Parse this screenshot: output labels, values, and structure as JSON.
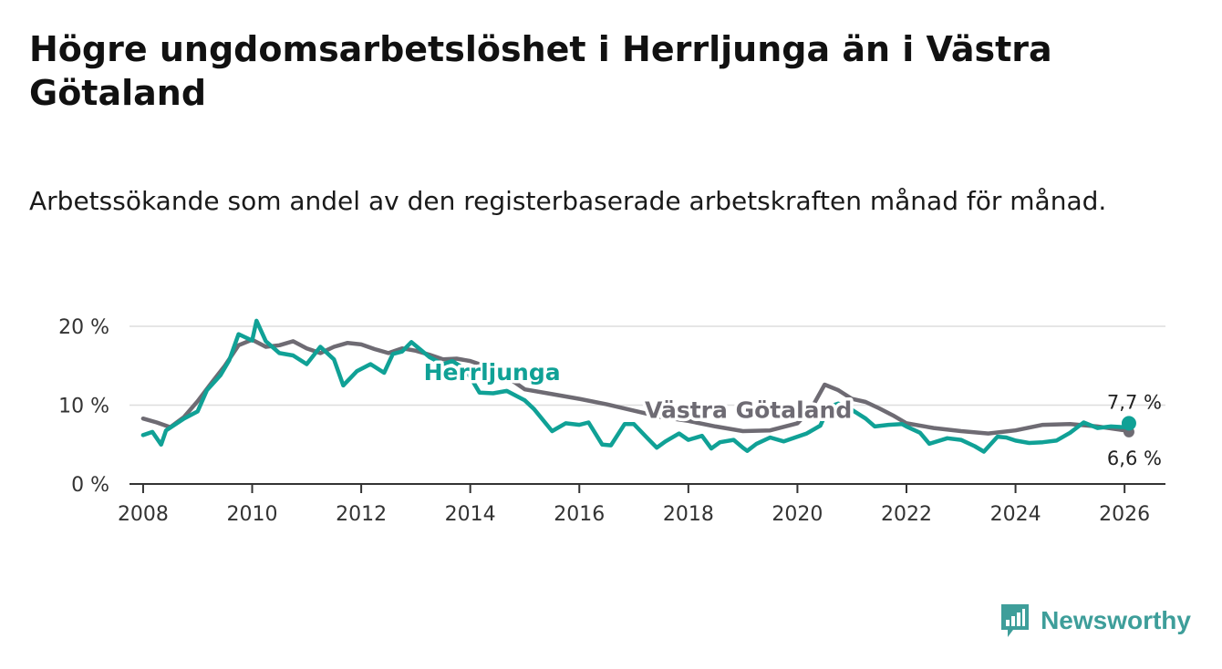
{
  "title": "Högre ungdomsarbetslöshet i Herrljunga än i Västra Götaland",
  "subtitle": "Arbetssökande som andel av den registerbaserade arbetskraften månad för månad.",
  "brand": "Newsworthy",
  "colors": {
    "herrljunga": "#10a196",
    "vastra": "#6e6b73",
    "grid": "#dddddd",
    "axis": "#333333"
  },
  "chart_data": {
    "type": "line",
    "title": "Högre ungdomsarbetslöshet i Herrljunga än i Västra Götaland",
    "xlabel": "",
    "ylabel": "",
    "xlim": [
      2007.75,
      2026.75
    ],
    "ylim": [
      0,
      20
    ],
    "y_ticks": [
      {
        "value": 0,
        "label": "0 %"
      },
      {
        "value": 10,
        "label": "10 %"
      },
      {
        "value": 20,
        "label": "20 %"
      }
    ],
    "x_ticks": [
      {
        "value": 2008,
        "label": "2008"
      },
      {
        "value": 2010,
        "label": "2010"
      },
      {
        "value": 2012,
        "label": "2012"
      },
      {
        "value": 2014,
        "label": "2014"
      },
      {
        "value": 2016,
        "label": "2016"
      },
      {
        "value": 2018,
        "label": "2018"
      },
      {
        "value": 2020,
        "label": "2020"
      },
      {
        "value": 2022,
        "label": "2022"
      },
      {
        "value": 2024,
        "label": "2024"
      },
      {
        "value": 2026,
        "label": "2026"
      }
    ],
    "series": [
      {
        "name": "Västra Götaland",
        "label": "Västra Götaland",
        "end_label": "6,6 %",
        "points": [
          [
            2008,
            8.3
          ],
          [
            2008.25,
            7.8
          ],
          [
            2008.5,
            7.2
          ],
          [
            2008.75,
            8.5
          ],
          [
            2009,
            10.5
          ],
          [
            2009.25,
            12.8
          ],
          [
            2009.5,
            15
          ],
          [
            2009.75,
            17.6
          ],
          [
            2010,
            18.3
          ],
          [
            2010.25,
            17.4
          ],
          [
            2010.5,
            17.6
          ],
          [
            2010.75,
            18.1
          ],
          [
            2011,
            17.2
          ],
          [
            2011.25,
            16.6
          ],
          [
            2011.5,
            17.4
          ],
          [
            2011.75,
            17.9
          ],
          [
            2012,
            17.7
          ],
          [
            2012.25,
            17.1
          ],
          [
            2012.5,
            16.6
          ],
          [
            2012.75,
            17.2
          ],
          [
            2013,
            16.9
          ],
          [
            2013.25,
            16.4
          ],
          [
            2013.5,
            15.8
          ],
          [
            2013.75,
            15.9
          ],
          [
            2014,
            15.6
          ],
          [
            2014.5,
            14.4
          ],
          [
            2015,
            12
          ],
          [
            2015.5,
            11.4
          ],
          [
            2016,
            10.8
          ],
          [
            2016.5,
            10.1
          ],
          [
            2017,
            9.3
          ],
          [
            2017.5,
            8.5
          ],
          [
            2018,
            8
          ],
          [
            2018.5,
            7.3
          ],
          [
            2019,
            6.7
          ],
          [
            2019.5,
            6.8
          ],
          [
            2020,
            7.7
          ],
          [
            2020.25,
            9.5
          ],
          [
            2020.5,
            12.6
          ],
          [
            2020.75,
            11.9
          ],
          [
            2021,
            10.8
          ],
          [
            2021.25,
            10.4
          ],
          [
            2021.5,
            9.6
          ],
          [
            2021.75,
            8.7
          ],
          [
            2022,
            7.7
          ],
          [
            2022.5,
            7.1
          ],
          [
            2023,
            6.7
          ],
          [
            2023.5,
            6.4
          ],
          [
            2024,
            6.8
          ],
          [
            2024.5,
            7.5
          ],
          [
            2025,
            7.6
          ],
          [
            2025.5,
            7.3
          ],
          [
            2026,
            6.8
          ],
          [
            2026.08,
            6.6
          ]
        ]
      },
      {
        "name": "Herrljunga",
        "label": "Herrljunga",
        "end_label": "7,7 %",
        "points": [
          [
            2008,
            6.2
          ],
          [
            2008.17,
            6.6
          ],
          [
            2008.33,
            5
          ],
          [
            2008.42,
            6.8
          ],
          [
            2008.75,
            8.3
          ],
          [
            2009,
            9.2
          ],
          [
            2009.17,
            11.9
          ],
          [
            2009.42,
            13.8
          ],
          [
            2009.58,
            15.7
          ],
          [
            2009.75,
            19
          ],
          [
            2010,
            18.2
          ],
          [
            2010.08,
            20.7
          ],
          [
            2010.25,
            18.1
          ],
          [
            2010.5,
            16.6
          ],
          [
            2010.75,
            16.3
          ],
          [
            2011,
            15.2
          ],
          [
            2011.25,
            17.4
          ],
          [
            2011.5,
            15.8
          ],
          [
            2011.67,
            12.5
          ],
          [
            2011.92,
            14.3
          ],
          [
            2012.17,
            15.2
          ],
          [
            2012.42,
            14.1
          ],
          [
            2012.58,
            16.5
          ],
          [
            2012.75,
            16.8
          ],
          [
            2012.92,
            18
          ],
          [
            2013.25,
            16.1
          ],
          [
            2013.5,
            15.2
          ],
          [
            2013.67,
            15.6
          ],
          [
            2013.92,
            14.5
          ],
          [
            2014.17,
            11.6
          ],
          [
            2014.42,
            11.5
          ],
          [
            2014.67,
            11.8
          ],
          [
            2015,
            10.6
          ],
          [
            2015.17,
            9.5
          ],
          [
            2015.5,
            6.7
          ],
          [
            2015.75,
            7.7
          ],
          [
            2016,
            7.5
          ],
          [
            2016.17,
            7.8
          ],
          [
            2016.42,
            5
          ],
          [
            2016.58,
            4.9
          ],
          [
            2016.83,
            7.6
          ],
          [
            2017,
            7.6
          ],
          [
            2017.25,
            5.8
          ],
          [
            2017.42,
            4.6
          ],
          [
            2017.58,
            5.4
          ],
          [
            2017.83,
            6.4
          ],
          [
            2018,
            5.6
          ],
          [
            2018.25,
            6.1
          ],
          [
            2018.42,
            4.5
          ],
          [
            2018.58,
            5.3
          ],
          [
            2018.83,
            5.6
          ],
          [
            2019,
            4.6
          ],
          [
            2019.08,
            4.2
          ],
          [
            2019.25,
            5.1
          ],
          [
            2019.5,
            5.9
          ],
          [
            2019.75,
            5.4
          ],
          [
            2020,
            6
          ],
          [
            2020.17,
            6.4
          ],
          [
            2020.42,
            7.4
          ],
          [
            2020.58,
            9.8
          ],
          [
            2020.75,
            10.2
          ],
          [
            2021,
            9.4
          ],
          [
            2021.25,
            8.3
          ],
          [
            2021.42,
            7.3
          ],
          [
            2021.67,
            7.5
          ],
          [
            2021.92,
            7.6
          ],
          [
            2022,
            7.3
          ],
          [
            2022.25,
            6.5
          ],
          [
            2022.42,
            5.1
          ],
          [
            2022.75,
            5.8
          ],
          [
            2023,
            5.6
          ],
          [
            2023.25,
            4.8
          ],
          [
            2023.42,
            4.1
          ],
          [
            2023.67,
            6
          ],
          [
            2023.83,
            5.9
          ],
          [
            2024,
            5.5
          ],
          [
            2024.25,
            5.2
          ],
          [
            2024.5,
            5.3
          ],
          [
            2024.75,
            5.5
          ],
          [
            2025,
            6.5
          ],
          [
            2025.25,
            7.8
          ],
          [
            2025.5,
            7.1
          ],
          [
            2025.75,
            7.3
          ],
          [
            2026,
            7.2
          ],
          [
            2026.08,
            7.7
          ]
        ]
      }
    ]
  }
}
